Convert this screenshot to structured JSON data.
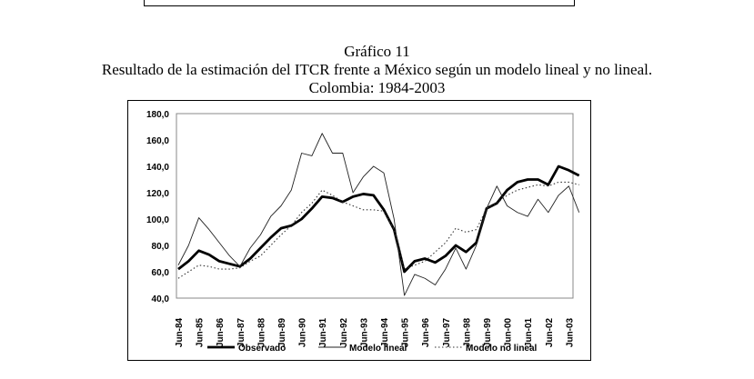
{
  "figure_label": "Gráfico 11",
  "chart_data": {
    "type": "line",
    "title": "Resultado de la estimación del ITCR frente a México según un modelo lineal y no lineal.",
    "subtitle": "Colombia: 1984-2003",
    "xlabel": "",
    "ylabel": "",
    "ylim": [
      40,
      180
    ],
    "yticks": [
      "40,0",
      "60,0",
      "80,0",
      "100,0",
      "120,0",
      "140,0",
      "160,0",
      "180,0"
    ],
    "xticks": [
      "Jun-84",
      "Jun-85",
      "Jun-86",
      "Jun-87",
      "Jun-88",
      "Jun-89",
      "Jun-90",
      "Jun-91",
      "Jun-92",
      "Jun-93",
      "Jun-94",
      "Jun-95",
      "Jun-96",
      "Jun-97",
      "Jun-98",
      "Jun-99",
      "Jun-00",
      "Jun-01",
      "Jun-02",
      "Jun-03"
    ],
    "x_period": "semiannual from Jun-84 to Dec-03",
    "legend_position": "bottom",
    "series": [
      {
        "name": "Observado",
        "style": "thick",
        "values": [
          62,
          68,
          76,
          73,
          68,
          66,
          64,
          70,
          78,
          86,
          93,
          95,
          100,
          108,
          117,
          116,
          113,
          117,
          119,
          118,
          107,
          92,
          60,
          68,
          70,
          67,
          72,
          80,
          75,
          82,
          108,
          112,
          122,
          128,
          130,
          130,
          126,
          140,
          137,
          133
        ]
      },
      {
        "name": "Modelo lineal",
        "style": "thin",
        "values": [
          65,
          80,
          101,
          92,
          82,
          72,
          64,
          78,
          88,
          102,
          110,
          122,
          150,
          148,
          165,
          150,
          150,
          120,
          132,
          140,
          135,
          100,
          42,
          58,
          55,
          50,
          62,
          78,
          62,
          80,
          108,
          125,
          110,
          105,
          102,
          115,
          105,
          118,
          125,
          105
        ]
      },
      {
        "name": "Modelo no lineal",
        "style": "dotted",
        "values": [
          55,
          60,
          65,
          64,
          62,
          62,
          63,
          68,
          72,
          80,
          88,
          95,
          105,
          112,
          122,
          118,
          113,
          110,
          107,
          107,
          106,
          92,
          62,
          65,
          68,
          75,
          82,
          93,
          90,
          92,
          108,
          112,
          118,
          122,
          124,
          126,
          125,
          128,
          128,
          126
        ]
      }
    ]
  }
}
